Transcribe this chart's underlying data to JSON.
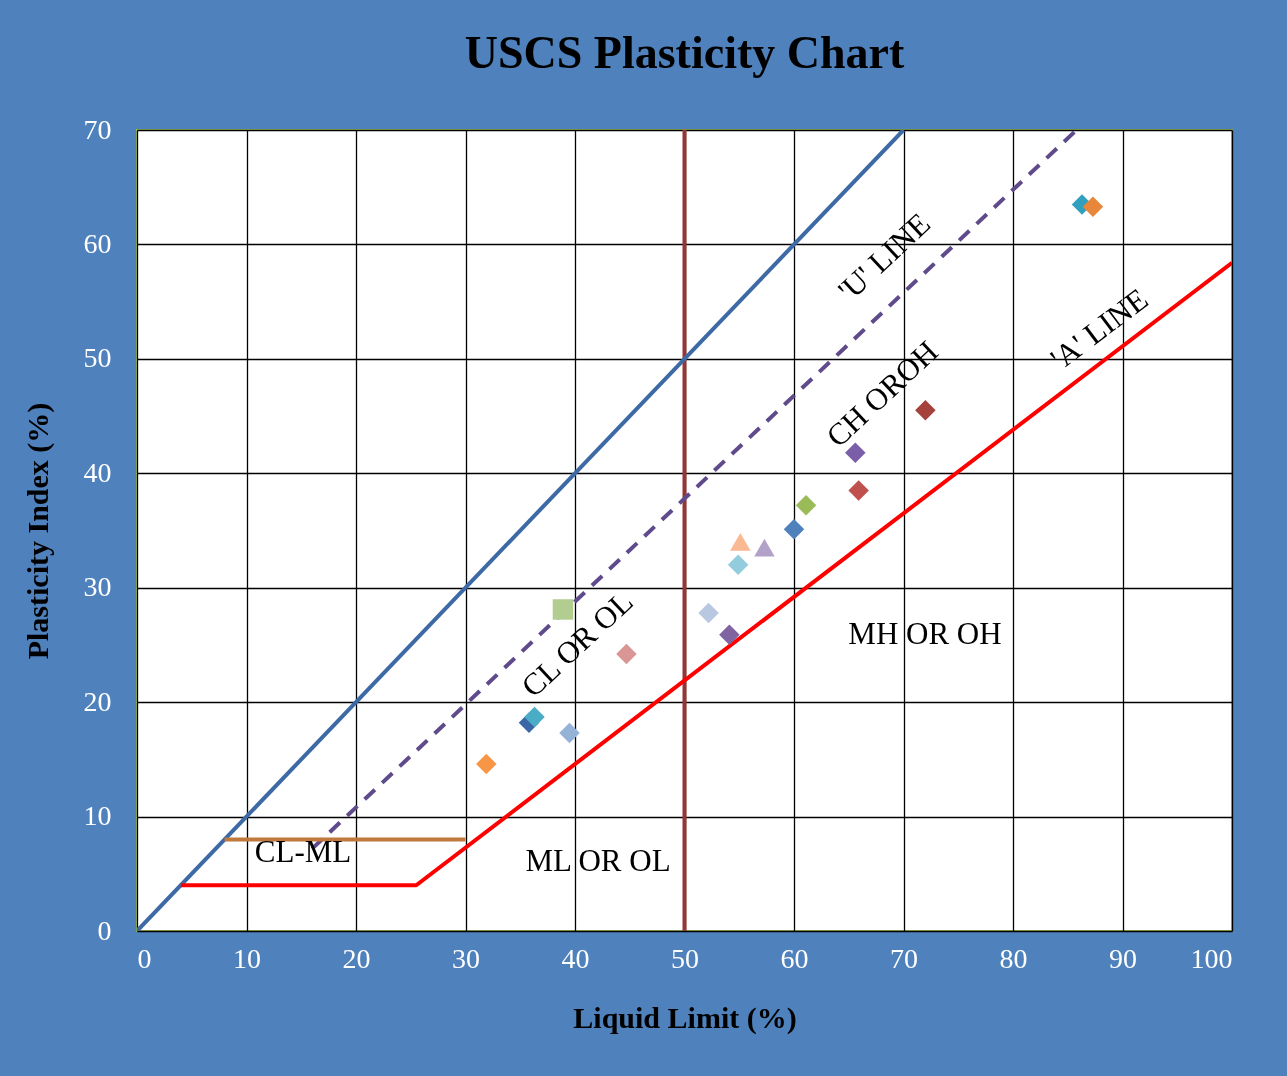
{
  "chart_data": {
    "type": "scatter",
    "title": "USCS Plasticity Chart",
    "xlabel": "Liquid Limit   (%)",
    "ylabel": "Plasticity Index (%)",
    "xlim": [
      0,
      100
    ],
    "ylim": [
      0,
      70
    ],
    "xticks": [
      0,
      10,
      20,
      30,
      40,
      50,
      60,
      70,
      80,
      90,
      100
    ],
    "yticks": [
      0,
      10,
      20,
      30,
      40,
      50,
      60,
      70
    ],
    "grid": true,
    "series": [
      {
        "type": "line",
        "color": "#3d6aa5",
        "line_style": "solid",
        "marker": "none",
        "x": [
          0,
          70
        ],
        "values": [
          0,
          70
        ]
      },
      {
        "type": "line",
        "color": "#5f4b8b",
        "line_style": "dashed",
        "marker": "none",
        "x": [
          16,
          85.8
        ],
        "values": [
          7.2,
          70
        ]
      },
      {
        "type": "line",
        "color": "#ff0000",
        "line_style": "solid",
        "marker": "none",
        "x": [
          4,
          25.5,
          100
        ],
        "values": [
          4,
          4,
          58.4
        ]
      },
      {
        "type": "line",
        "color": "#c0783c",
        "line_style": "solid",
        "marker": "none",
        "x": [
          8,
          30
        ],
        "values": [
          8,
          8
        ]
      },
      {
        "type": "scatter",
        "marker": "diamond",
        "x": [
          31.9,
          35.8,
          36.3,
          39.5,
          44.7,
          52.2,
          54.1,
          54.9,
          60.0,
          61.1,
          65.6,
          65.9,
          72.0,
          86.3,
          87.3
        ],
        "values": [
          14.6,
          18.2,
          18.7,
          17.3,
          24.2,
          27.8,
          25.9,
          32.0,
          35.1,
          37.2,
          41.8,
          38.5,
          45.5,
          63.5,
          63.3
        ],
        "colors": [
          "#f79646",
          "#3a66a8",
          "#4bacc6",
          "#95b3d7",
          "#d99694",
          "#b9c8e1",
          "#8064a2",
          "#93cddd",
          "#4f81bd",
          "#9bbb59",
          "#7b5ea8",
          "#c0504d",
          "#a5403d",
          "#31a0bd",
          "#e8863a"
        ]
      },
      {
        "type": "scatter",
        "marker": "triangle",
        "x": [
          55.1,
          57.3
        ],
        "values": [
          34.0,
          33.5
        ],
        "colors": [
          "#fab991",
          "#b3a2c7"
        ]
      },
      {
        "type": "scatter",
        "marker": "square",
        "x": [
          38.9
        ],
        "values": [
          28.1
        ],
        "colors": [
          "#b3cc90"
        ]
      }
    ],
    "ref_lines": [
      {
        "axis": "x",
        "value": 50,
        "color": "#943634"
      }
    ],
    "annotations": [
      "'U' LINE",
      "CH OROH",
      "'A' LINE",
      "CL OR OL",
      "MH OR OH",
      "ML OR OL",
      "CL-ML"
    ]
  }
}
